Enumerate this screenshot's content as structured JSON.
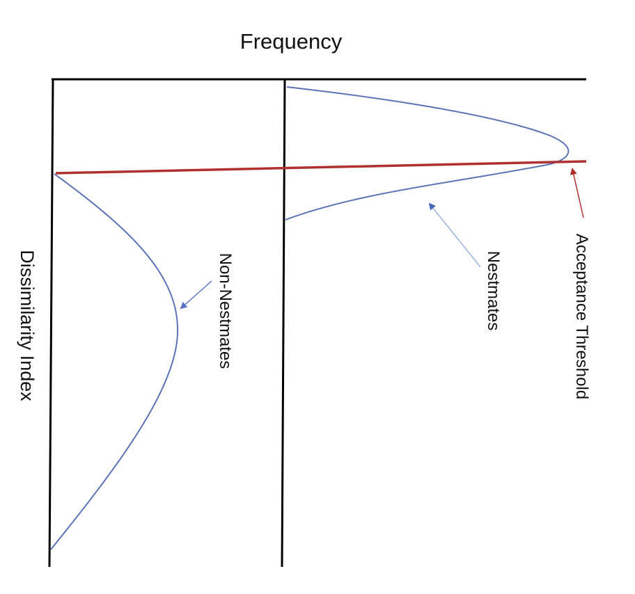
{
  "title": "Frequency",
  "y_axis_label": "Dissimilarity Index",
  "labels": {
    "non_nestmates": "Non-Nestmates",
    "nestmates": "Nestmates",
    "threshold": "Acceptance Threshold"
  },
  "colors": {
    "axis": "#000000",
    "curve": "#5b72b5",
    "threshold": "#b03030",
    "arrow_blue": "#4a64b8",
    "arrow_light": "#9ab0de",
    "arrow_red": "#b03030"
  }
}
